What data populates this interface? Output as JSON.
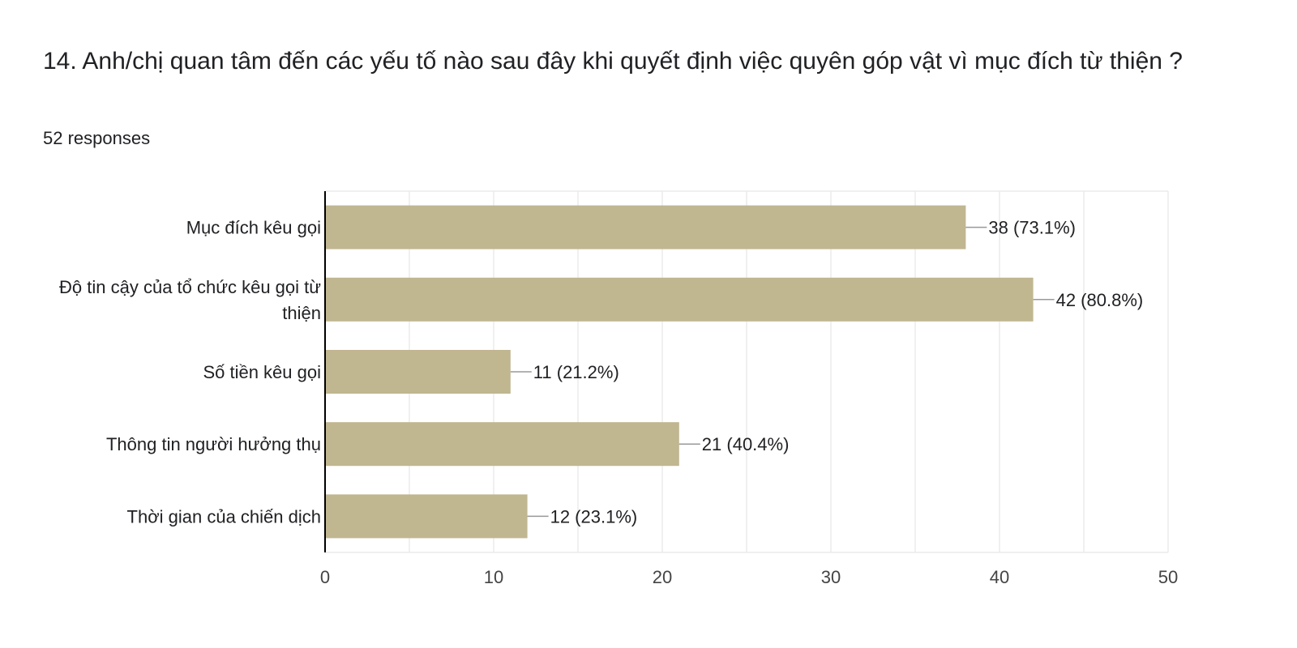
{
  "question": {
    "title": "14. Anh/chị quan tâm đến các yếu tố nào sau đây khi quyết định việc quyên góp vật vì mục đích từ thiện ?",
    "responses": "52 responses"
  },
  "chart_data": {
    "type": "bar",
    "orientation": "horizontal",
    "categories": [
      [
        "Mục đích kêu gọi"
      ],
      [
        "Độ tin cậy của tổ chức kêu gọi từ",
        "thiện"
      ],
      [
        "Số tiền kêu gọi"
      ],
      [
        "Thông tin người hưởng thụ"
      ],
      [
        "Thời gian của chiến dịch"
      ]
    ],
    "values": [
      38,
      42,
      11,
      21,
      12
    ],
    "value_labels": [
      "38 (73.1%)",
      "42 (80.8%)",
      "11 (21.2%)",
      "21 (40.4%)",
      "12 (23.1%)"
    ],
    "xlim": [
      0,
      50
    ],
    "xticks": [
      0,
      10,
      20,
      30,
      40,
      50
    ],
    "grid": true,
    "legend": "none",
    "colors": {
      "bar": "#c0b690",
      "leader": "#999999",
      "grid": "#ebebeb",
      "axis": "#000000"
    }
  }
}
